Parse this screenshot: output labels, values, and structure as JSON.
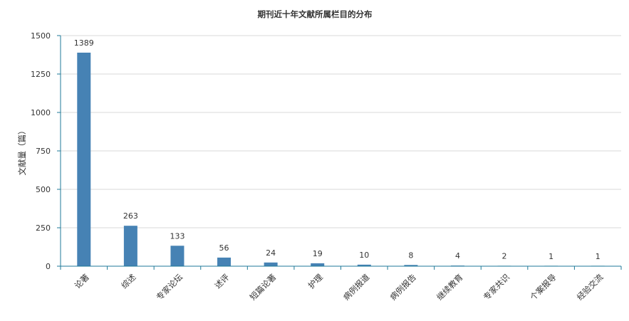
{
  "chart_data": {
    "type": "bar",
    "title": "期刊近十年文献所属栏目的分布",
    "xlabel": "",
    "ylabel": "文献量（篇）",
    "categories": [
      "论著",
      "综述",
      "专家论坛",
      "述评",
      "短篇论著",
      "护理",
      "病例报道",
      "病例报告",
      "继续教育",
      "专家共识",
      "个案报导",
      "经验交流"
    ],
    "values": [
      1389,
      263,
      133,
      56,
      24,
      19,
      10,
      8,
      4,
      2,
      1,
      1
    ],
    "ylim": [
      0,
      1500
    ],
    "yticks": [
      0,
      250,
      500,
      750,
      1000,
      1250,
      1500
    ],
    "grid": true,
    "legend": "none",
    "bar_color": "#4682b4",
    "grid_color": "#d9d9d9",
    "axis_color": "#1f7a99"
  }
}
